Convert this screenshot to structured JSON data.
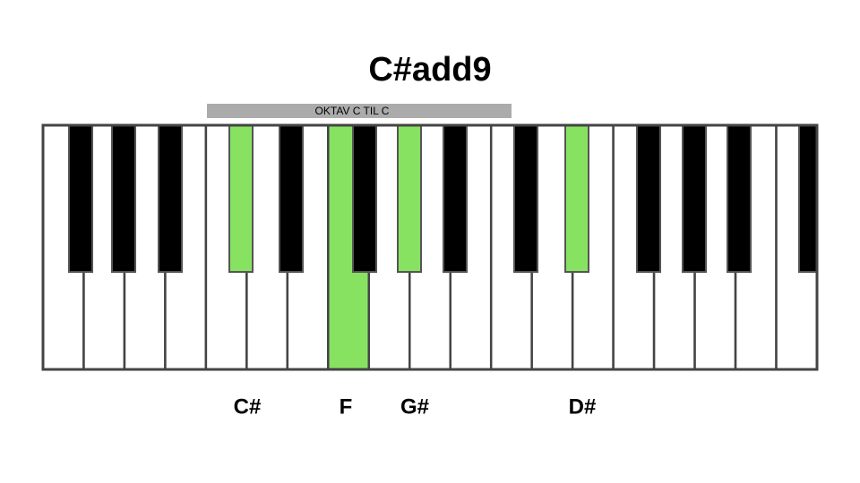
{
  "title": "C#add9",
  "octave_label": "OKTAV C TIL C",
  "note_labels": [
    "C#",
    "F",
    "G#",
    "D#"
  ]
}
